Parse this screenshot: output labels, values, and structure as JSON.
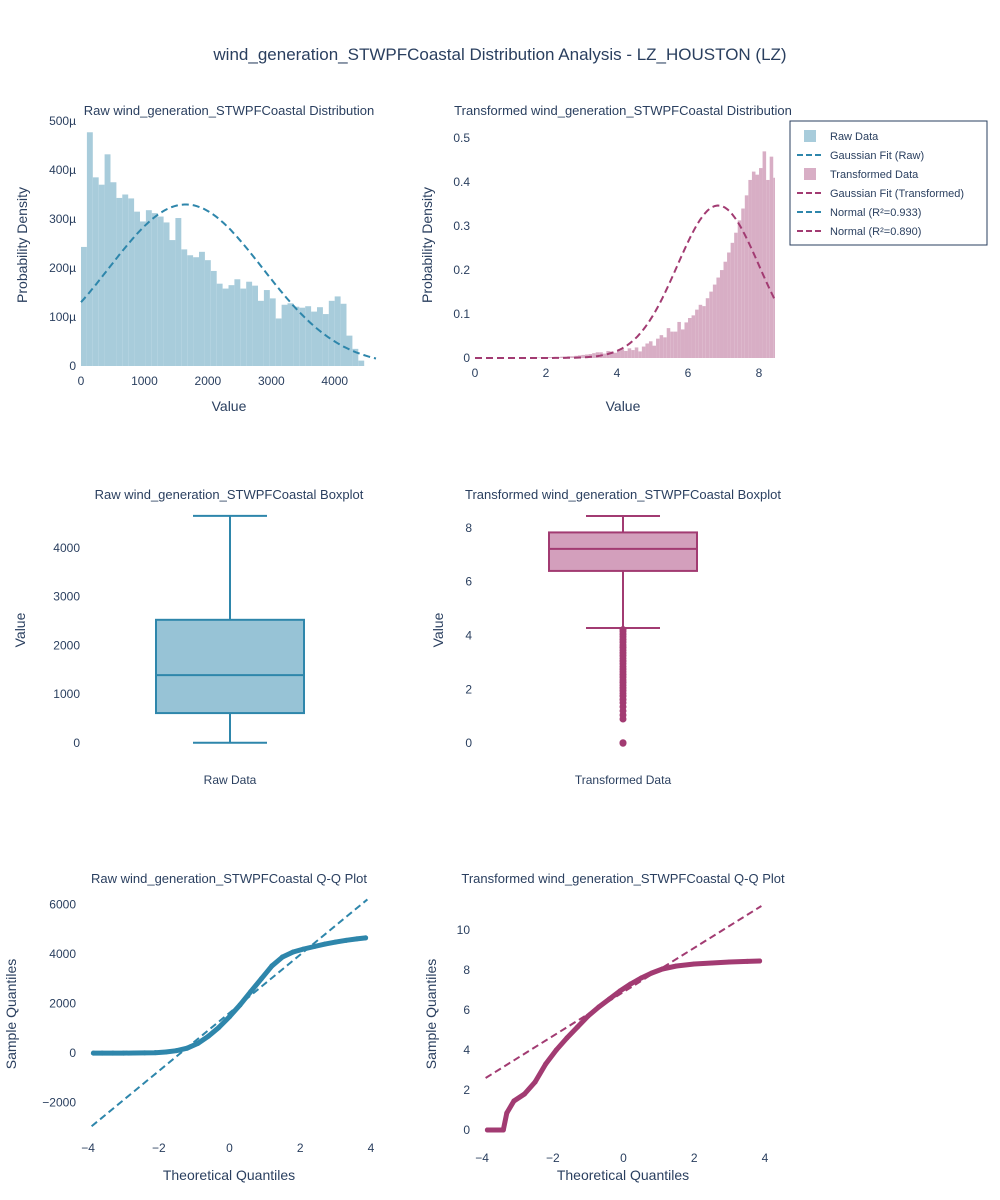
{
  "title": "wind_generation_STWPFCoastal Distribution Analysis - LZ_HOUSTON (LZ)",
  "colors": {
    "raw": "#2E86AB",
    "raw_fill": "#A8CCDB",
    "transformed": "#A23B72",
    "transformed_fill": "#D8AEC5"
  },
  "legend": {
    "placement": "top-right",
    "items": [
      {
        "label": "Raw Data",
        "kind": "box",
        "color": "#A8CCDB"
      },
      {
        "label": "Gaussian Fit (Raw)",
        "kind": "dash",
        "color": "#2E86AB"
      },
      {
        "label": "Transformed Data",
        "kind": "box",
        "color": "#D8AEC5"
      },
      {
        "label": "Gaussian Fit (Transformed)",
        "kind": "dash",
        "color": "#A23B72"
      },
      {
        "label": "Normal (R²=0.933)",
        "kind": "dash",
        "color": "#2E86AB"
      },
      {
        "label": "Normal (R²=0.890)",
        "kind": "dash",
        "color": "#A23B72"
      }
    ]
  },
  "chart_data": [
    {
      "id": "raw-hist",
      "type": "bar",
      "title": "Raw wind_generation_STWPFCoastal Distribution",
      "xlabel": "Value",
      "ylabel": "Probability Density",
      "xlim": [
        0,
        4650
      ],
      "ylim": [
        0,
        0.0005
      ],
      "xticks": [
        0,
        1000,
        2000,
        3000,
        4000
      ],
      "xtick_labels": [
        "0",
        "1000",
        "2000",
        "3000",
        "4000"
      ],
      "yticks": [
        0,
        0.0001,
        0.0002,
        0.0003,
        0.0004,
        0.0005
      ],
      "ytick_labels": [
        "0",
        "100µ",
        "200µ",
        "300µ",
        "400µ",
        "500µ"
      ],
      "bin_start": 0,
      "bin_width": 93,
      "values": [
        0.000243,
        0.000477,
        0.000385,
        0.00037,
        0.000432,
        0.000375,
        0.000343,
        0.00035,
        0.000342,
        0.000315,
        0.000295,
        0.000318,
        0.000312,
        0.000305,
        0.000293,
        0.000257,
        0.000302,
        0.000238,
        0.000226,
        0.000222,
        0.000233,
        0.000216,
        0.000194,
        0.000168,
        0.000158,
        0.000165,
        0.000177,
        0.000158,
        0.000172,
        0.000164,
        0.000133,
        0.000155,
        0.000138,
        9.7e-05,
        0.000125,
        0.000128,
        0.000121,
        0.000119,
        0.000122,
        0.000111,
        0.00012,
        0.000106,
        0.000133,
        0.000142,
        0.000127,
        6.2e-05,
        3.5e-05,
        1.1e-05
      ],
      "fit": {
        "name": "Gaussian Fit (Raw)",
        "mean": 1650,
        "std": 1210,
        "x_from": 0,
        "x_to": 4650
      }
    },
    {
      "id": "trans-hist",
      "type": "bar",
      "title": "Transformed wind_generation_STWPFCoastal Distribution",
      "xlabel": "Value",
      "ylabel": "Probability Density",
      "xlim": [
        0,
        8.45
      ],
      "ylim": [
        0,
        0.53
      ],
      "xticks": [
        0,
        2,
        4,
        6,
        8
      ],
      "xtick_labels": [
        "0",
        "2",
        "4",
        "6",
        "8"
      ],
      "yticks": [
        0,
        0.1,
        0.2,
        0.3,
        0.4,
        0.5
      ],
      "ytick_labels": [
        "0",
        "0.1",
        "0.2",
        "0.3",
        "0.4",
        "0.5"
      ],
      "bin_start": 1.7,
      "bin_width": 0.1,
      "values": [
        0.001,
        0.001,
        0.001,
        0.002,
        0.002,
        0.002,
        0.002,
        0.003,
        0.003,
        0.004,
        0.004,
        0.005,
        0.006,
        0.007,
        0.008,
        0.009,
        0.011,
        0.013,
        0.013,
        0.01,
        0.016,
        0.015,
        0.012,
        0.018,
        0.02,
        0.016,
        0.022,
        0.018,
        0.024,
        0.015,
        0.026,
        0.033,
        0.038,
        0.028,
        0.044,
        0.052,
        0.047,
        0.068,
        0.06,
        0.06,
        0.082,
        0.065,
        0.081,
        0.091,
        0.097,
        0.11,
        0.121,
        0.118,
        0.136,
        0.151,
        0.167,
        0.183,
        0.2,
        0.219,
        0.24,
        0.262,
        0.285,
        0.313,
        0.34,
        0.37,
        0.405,
        0.424,
        0.417,
        0.432,
        0.47,
        0.405,
        0.458,
        0.41,
        0.415,
        0.42,
        0.425,
        0.49,
        0.335,
        0.35,
        0.405,
        0.412,
        0.385,
        0.51,
        0.17
      ],
      "fit": {
        "name": "Gaussian Fit (Transformed)",
        "mean": 6.85,
        "std": 1.15,
        "x_from": 0,
        "x_to": 8.45
      }
    },
    {
      "id": "raw-box",
      "type": "box",
      "title": "Raw wind_generation_STWPFCoastal Boxplot",
      "category": "Raw Data",
      "ylabel": "Value",
      "ylim": [
        -230,
        4800
      ],
      "yticks": [
        0,
        1000,
        2000,
        3000,
        4000
      ],
      "ytick_labels": [
        "0",
        "1000",
        "2000",
        "3000",
        "4000"
      ],
      "stats": {
        "min": 0,
        "q1": 610,
        "median": 1390,
        "q3": 2525,
        "max": 4660
      },
      "outliers": []
    },
    {
      "id": "trans-box",
      "type": "box",
      "title": "Transformed wind_generation_STWPFCoastal Boxplot",
      "category": "Transformed Data",
      "ylabel": "Value",
      "ylim": [
        -0.4,
        8.7
      ],
      "yticks": [
        0,
        2,
        4,
        6,
        8
      ],
      "ytick_labels": [
        "0",
        "2",
        "4",
        "6",
        "8"
      ],
      "stats": {
        "min": 4.28,
        "q1": 6.4,
        "median": 7.22,
        "q3": 7.83,
        "max": 8.44
      },
      "outliers": [
        0,
        0.02,
        0.9,
        1.05,
        1.2,
        1.35,
        1.5,
        1.62,
        1.75,
        1.85,
        1.95,
        2.05,
        2.15,
        2.25,
        2.35,
        2.45,
        2.55,
        2.65,
        2.75,
        2.85,
        2.95,
        3.05,
        3.15,
        3.25,
        3.35,
        3.45,
        3.55,
        3.65,
        3.75,
        3.85,
        3.95,
        4.05,
        4.15,
        4.22
      ]
    },
    {
      "id": "raw-qq",
      "type": "scatter",
      "title": "Raw wind_generation_STWPFCoastal Q-Q Plot",
      "xlabel": "Theoretical Quantiles",
      "ylabel": "Sample Quantiles",
      "xlim": [
        -4.2,
        4.2
      ],
      "ylim": [
        -3100,
        6500
      ],
      "xticks": [
        -4,
        -2,
        0,
        2,
        4
      ],
      "xtick_labels": [
        "−4",
        "−2",
        "0",
        "2",
        "4"
      ],
      "yticks": [
        -2000,
        0,
        2000,
        4000,
        6000
      ],
      "ytick_labels": [
        "−2000",
        "0",
        "2000",
        "4000",
        "6000"
      ],
      "points": [
        [
          -3.85,
          0
        ],
        [
          -3.6,
          0
        ],
        [
          -3.3,
          0
        ],
        [
          -3.0,
          2
        ],
        [
          -2.7,
          5
        ],
        [
          -2.4,
          10
        ],
        [
          -2.1,
          20
        ],
        [
          -1.8,
          45
        ],
        [
          -1.5,
          100
        ],
        [
          -1.2,
          200
        ],
        [
          -0.9,
          390
        ],
        [
          -0.6,
          680
        ],
        [
          -0.3,
          1040
        ],
        [
          0.0,
          1470
        ],
        [
          0.3,
          1950
        ],
        [
          0.6,
          2480
        ],
        [
          0.9,
          3000
        ],
        [
          1.2,
          3520
        ],
        [
          1.5,
          3880
        ],
        [
          1.8,
          4080
        ],
        [
          2.1,
          4200
        ],
        [
          2.4,
          4300
        ],
        [
          2.7,
          4400
        ],
        [
          3.0,
          4480
        ],
        [
          3.3,
          4550
        ],
        [
          3.6,
          4610
        ],
        [
          3.85,
          4650
        ]
      ],
      "line": {
        "name": "Normal (R²=0.933)",
        "x": [
          -3.9,
          3.9
        ],
        "y": [
          -2950,
          6200
        ]
      }
    },
    {
      "id": "trans-qq",
      "type": "scatter",
      "title": "Transformed wind_generation_STWPFCoastal Q-Q Plot",
      "xlabel": "Theoretical Quantiles",
      "ylabel": "Sample Quantiles",
      "xlim": [
        -4.2,
        4.2
      ],
      "ylim": [
        -0.5,
        11.7
      ],
      "xticks": [
        -4,
        -2,
        0,
        2,
        4
      ],
      "xtick_labels": [
        "−4",
        "−2",
        "0",
        "2",
        "4"
      ],
      "yticks": [
        0,
        2,
        4,
        6,
        8,
        10
      ],
      "ytick_labels": [
        "0",
        "2",
        "4",
        "6",
        "8",
        "10"
      ],
      "points": [
        [
          -3.85,
          0
        ],
        [
          -3.55,
          0
        ],
        [
          -3.4,
          0
        ],
        [
          -3.3,
          0.85
        ],
        [
          -3.1,
          1.45
        ],
        [
          -2.8,
          1.8
        ],
        [
          -2.5,
          2.4
        ],
        [
          -2.2,
          3.3
        ],
        [
          -1.9,
          4.0
        ],
        [
          -1.6,
          4.6
        ],
        [
          -1.3,
          5.15
        ],
        [
          -1.0,
          5.7
        ],
        [
          -0.7,
          6.15
        ],
        [
          -0.4,
          6.55
        ],
        [
          -0.1,
          6.95
        ],
        [
          0.2,
          7.3
        ],
        [
          0.5,
          7.6
        ],
        [
          0.8,
          7.85
        ],
        [
          1.1,
          8.05
        ],
        [
          1.5,
          8.2
        ],
        [
          2.0,
          8.3
        ],
        [
          2.5,
          8.35
        ],
        [
          3.0,
          8.4
        ],
        [
          3.5,
          8.43
        ],
        [
          3.85,
          8.45
        ]
      ],
      "line": {
        "name": "Normal (R²=0.890)",
        "x": [
          -3.9,
          3.9
        ],
        "y": [
          2.6,
          11.2
        ]
      }
    }
  ]
}
